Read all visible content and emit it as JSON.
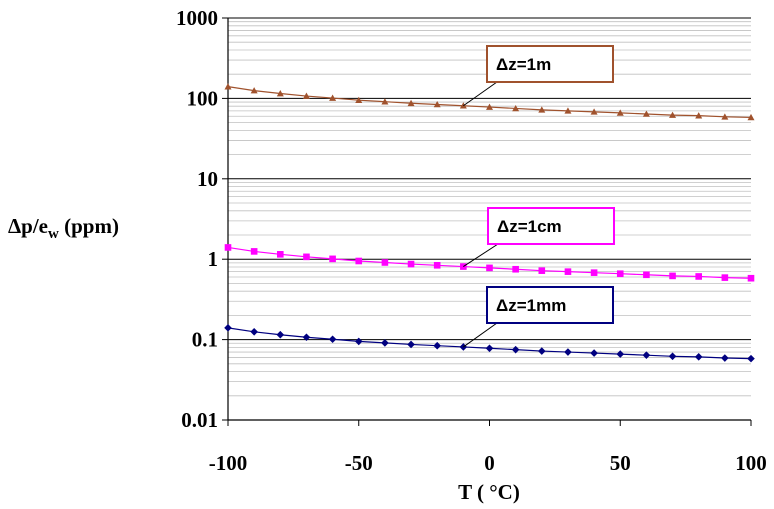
{
  "chart_data": {
    "type": "line",
    "title": "",
    "xlabel": "T ( °C)",
    "ylabel_main": "Δp/e",
    "ylabel_sub": "w",
    "ylabel_tail": " (ppm)",
    "xlim": [
      -100,
      100
    ],
    "ylim": [
      0.01,
      1000
    ],
    "yscale": "log",
    "grid": "horizontal",
    "x_ticks": [
      "-100",
      "-50",
      "0",
      "50",
      "100"
    ],
    "x_tick_values": [
      -100,
      -50,
      0,
      50,
      100
    ],
    "y_ticks": [
      "0.01",
      "0.1",
      "1",
      "10",
      "100",
      "1000"
    ],
    "y_tick_values": [
      0.01,
      0.1,
      1,
      10,
      100,
      1000
    ],
    "x": [
      -100,
      -90,
      -80,
      -70,
      -60,
      -50,
      -40,
      -30,
      -20,
      -10,
      0,
      10,
      20,
      30,
      40,
      50,
      60,
      70,
      80,
      90,
      100
    ],
    "series": [
      {
        "name": "Δz=1m",
        "color": "#a0522d",
        "marker": "triangle",
        "values": [
          140,
          125,
          115,
          107,
          101,
          95,
          91,
          87,
          84,
          81,
          78,
          75,
          72,
          70,
          68,
          66,
          64,
          62,
          61,
          59,
          58
        ]
      },
      {
        "name": "Δz=1cm",
        "color": "#ff00ff",
        "marker": "square",
        "values": [
          1.4,
          1.25,
          1.15,
          1.07,
          1.01,
          0.95,
          0.91,
          0.87,
          0.84,
          0.81,
          0.78,
          0.75,
          0.72,
          0.7,
          0.68,
          0.66,
          0.64,
          0.62,
          0.61,
          0.59,
          0.58
        ]
      },
      {
        "name": "Δz=1mm",
        "color": "#000080",
        "marker": "diamond",
        "values": [
          0.14,
          0.125,
          0.115,
          0.107,
          0.101,
          0.095,
          0.091,
          0.087,
          0.084,
          0.081,
          0.078,
          0.075,
          0.072,
          0.07,
          0.068,
          0.066,
          0.064,
          0.062,
          0.061,
          0.059,
          0.058
        ]
      }
    ],
    "annotations": [
      {
        "text": "Δz=1m",
        "series": 0,
        "border_color": "#a0522d",
        "pointer_x": -10
      },
      {
        "text": "Δz=1cm",
        "series": 1,
        "border_color": "#ff00ff",
        "pointer_x": -10
      },
      {
        "text": "Δz=1mm",
        "series": 2,
        "border_color": "#000080",
        "pointer_x": -10
      }
    ]
  }
}
